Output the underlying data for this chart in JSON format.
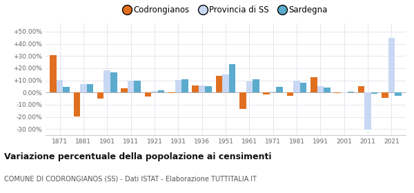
{
  "years": [
    1871,
    1881,
    1901,
    1911,
    1921,
    1931,
    1936,
    1951,
    1961,
    1971,
    1981,
    1991,
    2001,
    2011,
    2021
  ],
  "codrongianos": [
    30.5,
    -19.5,
    -5.0,
    3.5,
    -3.5,
    -0.5,
    6.0,
    13.5,
    -13.5,
    -1.5,
    -2.5,
    12.5,
    -0.5,
    5.0,
    -4.5
  ],
  "provincia_ss": [
    10.5,
    7.0,
    18.5,
    10.0,
    1.5,
    10.5,
    6.0,
    15.0,
    9.0,
    0.5,
    9.5,
    5.0,
    -0.5,
    -30.5,
    45.0
  ],
  "sardegna": [
    4.5,
    7.0,
    16.5,
    9.5,
    2.0,
    11.0,
    5.5,
    23.5,
    11.0,
    4.5,
    8.0,
    4.0,
    0.5,
    -1.0,
    -2.5
  ],
  "color_codrongianos": "#e07020",
  "color_provincia": "#c8d8f4",
  "color_sardegna": "#5aabcd",
  "title": "Variazione percentuale della popolazione ai censimenti",
  "subtitle": "COMUNE DI CODRONGIANOS (SS) - Dati ISTAT - Elaborazione TUTTITALIA.IT",
  "legend_labels": [
    "Codrongianos",
    "Provincia di SS",
    "Sardegna"
  ],
  "ylim": [
    -35,
    57
  ],
  "yticks": [
    -30,
    -20,
    -10,
    0,
    10,
    20,
    30,
    40,
    50
  ],
  "ytick_labels": [
    "-30.00%",
    "-20.00%",
    "-10.00%",
    "0.00%",
    "+10.00%",
    "+20.00%",
    "+30.00%",
    "+40.00%",
    "+50.00%"
  ],
  "background_color": "#ffffff",
  "grid_color": "#e0e0ec"
}
